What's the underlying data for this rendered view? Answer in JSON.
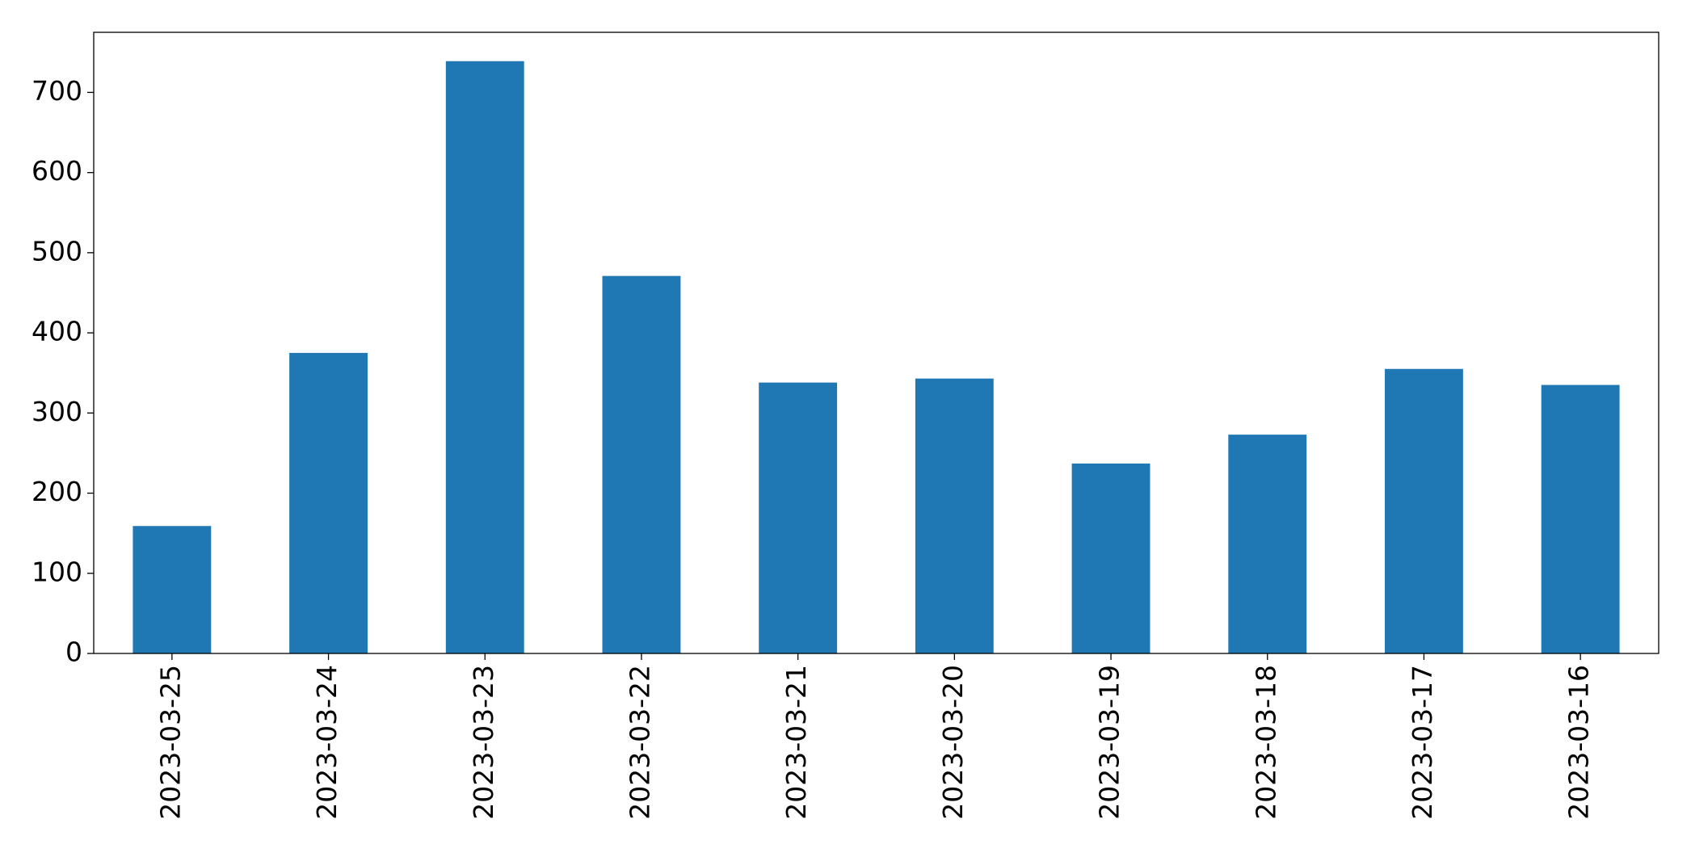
{
  "chart_data": {
    "type": "bar",
    "categories": [
      "2023-03-25",
      "2023-03-24",
      "2023-03-23",
      "2023-03-22",
      "2023-03-21",
      "2023-03-20",
      "2023-03-19",
      "2023-03-18",
      "2023-03-17",
      "2023-03-16"
    ],
    "values": [
      159,
      375,
      739,
      471,
      338,
      343,
      237,
      273,
      355,
      335
    ],
    "color": "#1f77b4",
    "ylim": [
      0,
      775
    ],
    "yticks": [
      0,
      100,
      200,
      300,
      400,
      500,
      600,
      700
    ],
    "grid": false
  }
}
